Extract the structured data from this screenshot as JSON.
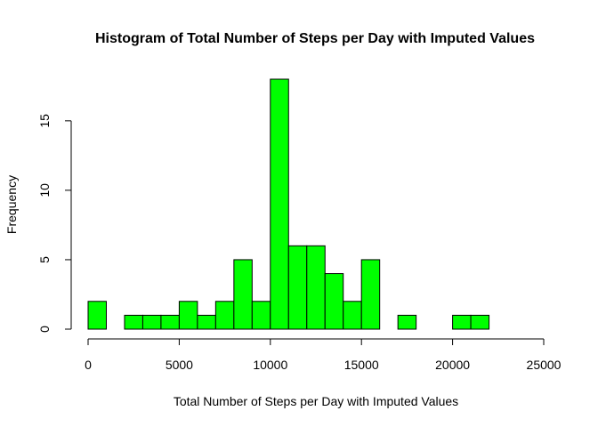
{
  "chart_data": {
    "type": "bar",
    "title": "Histogram of Total Number of Steps per Day with Imputed Values",
    "xlabel": "Total Number of Steps per Day with Imputed Values",
    "ylabel": "Frequency",
    "bin_width": 1000,
    "xlim": [
      0,
      25000
    ],
    "ylim": [
      0,
      18
    ],
    "x_ticks": [
      0,
      5000,
      10000,
      15000,
      20000,
      25000
    ],
    "y_ticks": [
      0,
      5,
      10,
      15
    ],
    "bar_color": "#00ff00",
    "bins": [
      {
        "x0": 0,
        "x1": 1000,
        "count": 2
      },
      {
        "x0": 1000,
        "x1": 2000,
        "count": 0
      },
      {
        "x0": 2000,
        "x1": 3000,
        "count": 1
      },
      {
        "x0": 3000,
        "x1": 4000,
        "count": 1
      },
      {
        "x0": 4000,
        "x1": 5000,
        "count": 1
      },
      {
        "x0": 5000,
        "x1": 6000,
        "count": 2
      },
      {
        "x0": 6000,
        "x1": 7000,
        "count": 1
      },
      {
        "x0": 7000,
        "x1": 8000,
        "count": 2
      },
      {
        "x0": 8000,
        "x1": 9000,
        "count": 5
      },
      {
        "x0": 9000,
        "x1": 10000,
        "count": 2
      },
      {
        "x0": 10000,
        "x1": 11000,
        "count": 18
      },
      {
        "x0": 11000,
        "x1": 12000,
        "count": 6
      },
      {
        "x0": 12000,
        "x1": 13000,
        "count": 6
      },
      {
        "x0": 13000,
        "x1": 14000,
        "count": 4
      },
      {
        "x0": 14000,
        "x1": 15000,
        "count": 2
      },
      {
        "x0": 15000,
        "x1": 16000,
        "count": 5
      },
      {
        "x0": 16000,
        "x1": 17000,
        "count": 0
      },
      {
        "x0": 17000,
        "x1": 18000,
        "count": 1
      },
      {
        "x0": 18000,
        "x1": 19000,
        "count": 0
      },
      {
        "x0": 19000,
        "x1": 20000,
        "count": 0
      },
      {
        "x0": 20000,
        "x1": 21000,
        "count": 1
      },
      {
        "x0": 21000,
        "x1": 22000,
        "count": 1
      },
      {
        "x0": 22000,
        "x1": 23000,
        "count": 0
      },
      {
        "x0": 23000,
        "x1": 24000,
        "count": 0
      },
      {
        "x0": 24000,
        "x1": 25000,
        "count": 0
      }
    ]
  }
}
